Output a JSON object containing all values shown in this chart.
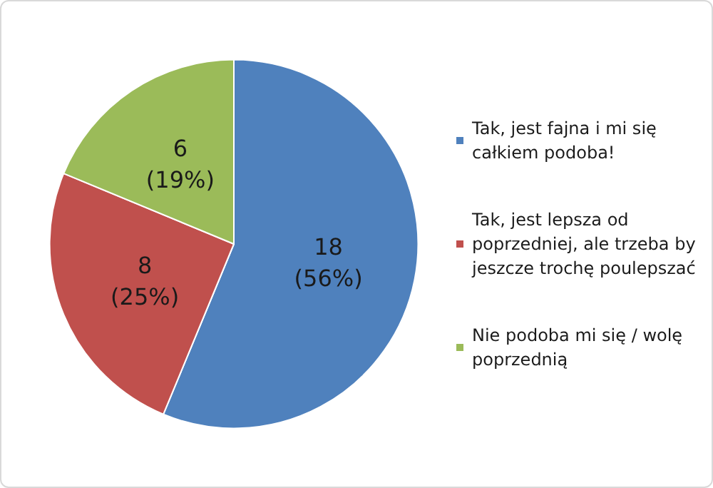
{
  "chart_data": {
    "type": "pie",
    "categories": [
      "Tak, jest fajna i mi się całkiem podoba!",
      "Tak, jest lepsza od poprzedniej, ale trzeba by jeszcze trochę poulepszać",
      "Nie podoba mi się / wolę poprzednią"
    ],
    "values": [
      18,
      8,
      6
    ],
    "colors": [
      "#4f81bd",
      "#c0504d",
      "#9bbb59"
    ],
    "value_labels": [
      "18\n(56%)",
      "8\n(25%)",
      "6\n(19%)"
    ],
    "legend": "right"
  }
}
